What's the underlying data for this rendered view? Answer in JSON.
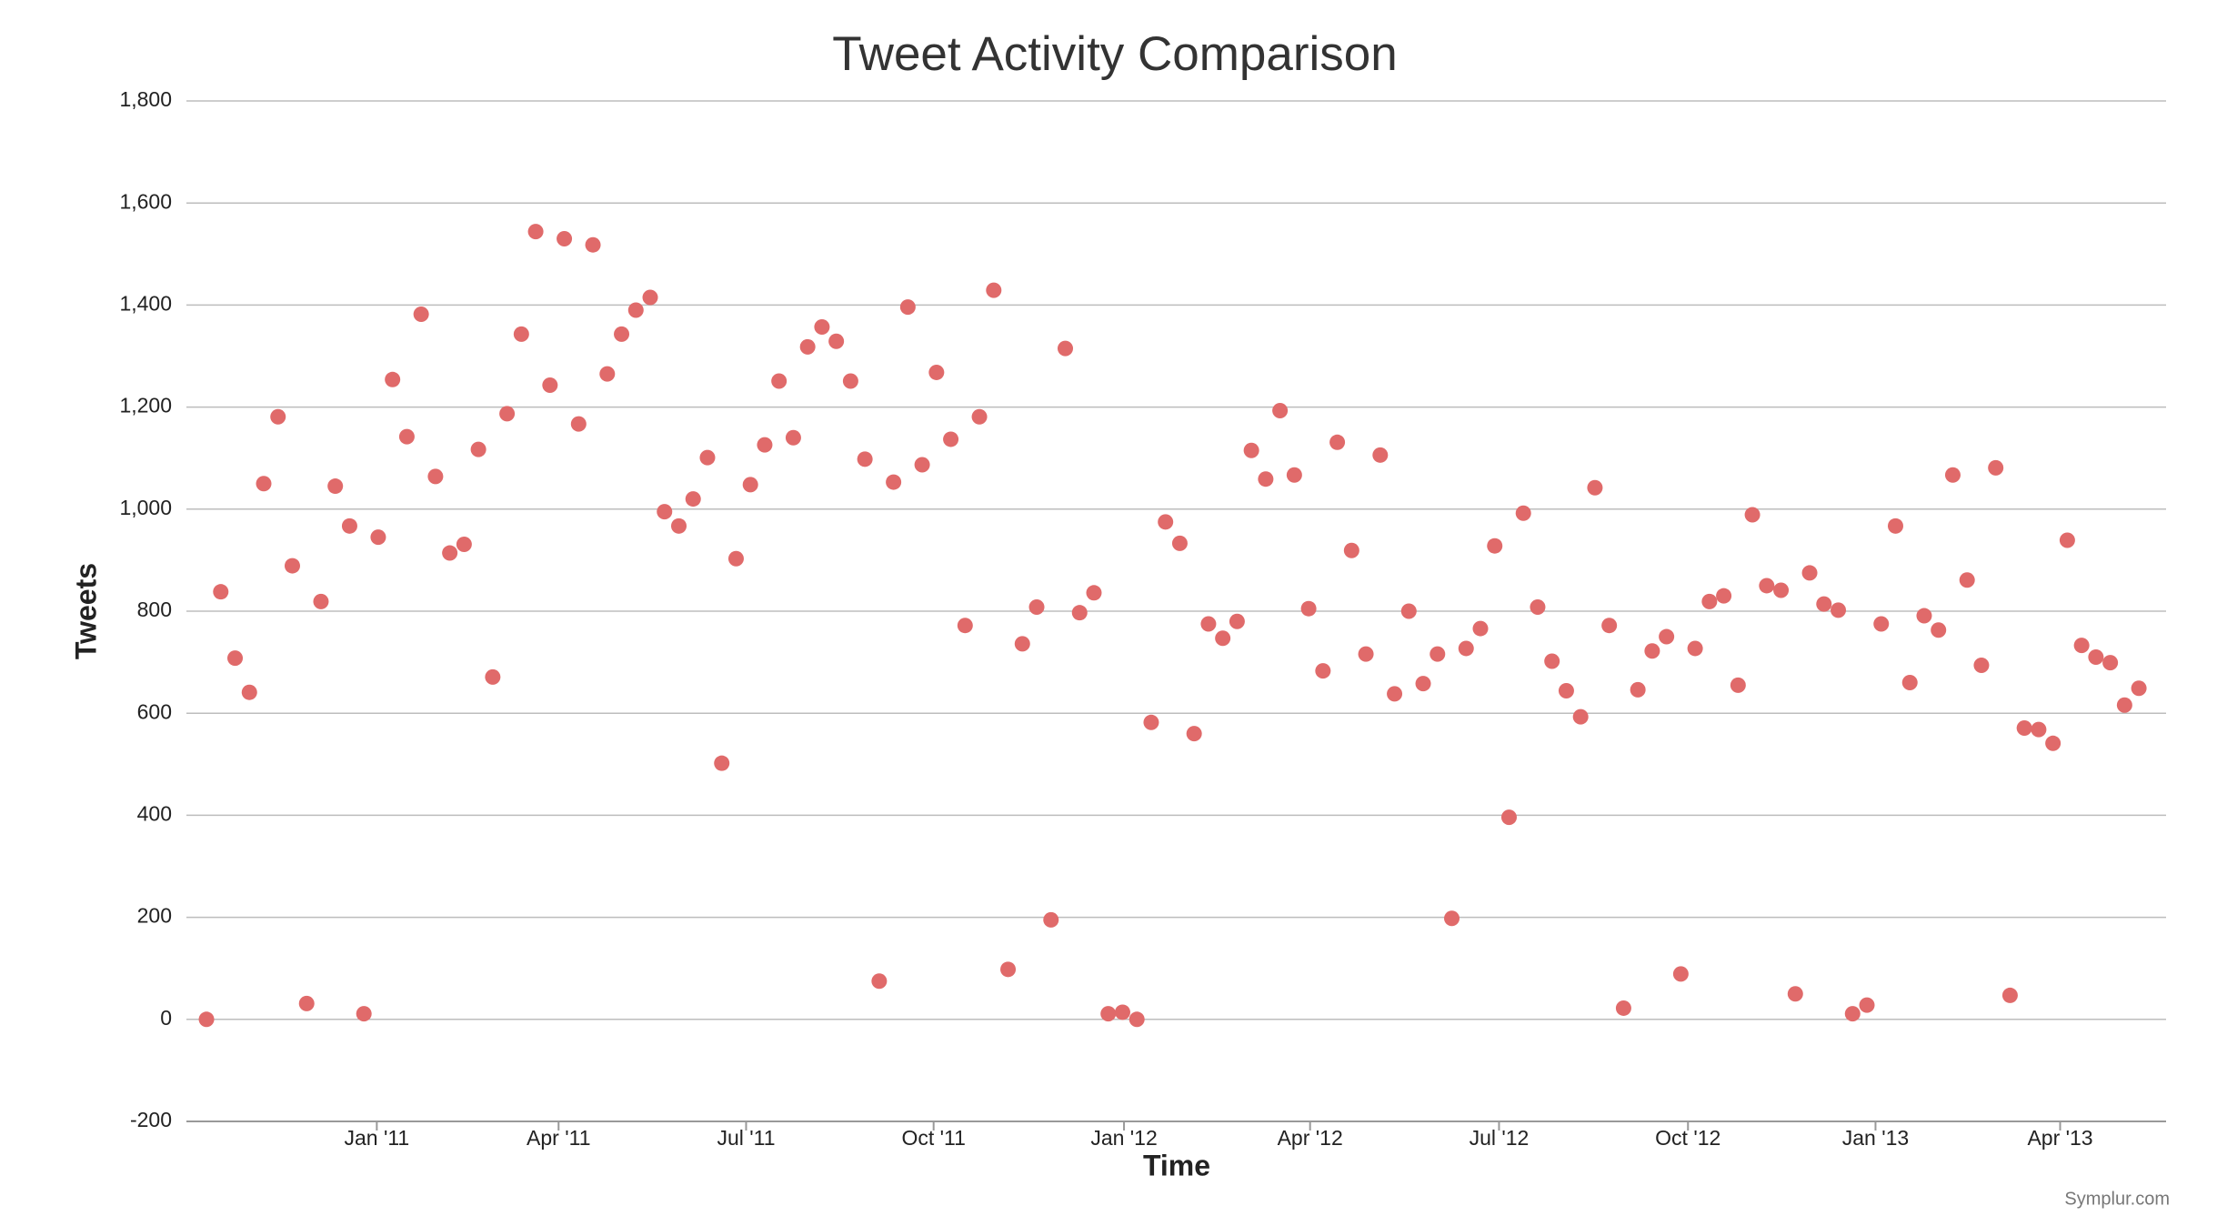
{
  "chart_data": {
    "type": "scatter",
    "title": "Tweet Activity Comparison",
    "xlabel": "Time",
    "ylabel": "Tweets",
    "credit": "Symplur.com",
    "color": "#e06a6a",
    "grid": true,
    "x": [
      0,
      1,
      2,
      3,
      4,
      5,
      6,
      7,
      8,
      9,
      10,
      11,
      12,
      13,
      14,
      15,
      16,
      17,
      18,
      19,
      20,
      21,
      22,
      23,
      24,
      25,
      26,
      27,
      28,
      29,
      30,
      31,
      32,
      33,
      34,
      35,
      36,
      37,
      38,
      39,
      40,
      41,
      42,
      43,
      44,
      45,
      46,
      47,
      48,
      49,
      50,
      51,
      52,
      53,
      54,
      55,
      56,
      57,
      58,
      59,
      60,
      61,
      62,
      63,
      64,
      65,
      66,
      67,
      68,
      69,
      70,
      71,
      72,
      73,
      74,
      75,
      76,
      77,
      78,
      79,
      80,
      81,
      82,
      83,
      84,
      85,
      86,
      87,
      88,
      89,
      90,
      91,
      92,
      93,
      94,
      95,
      96,
      97,
      98,
      99,
      100,
      101,
      102,
      103,
      104,
      105,
      106,
      107,
      108,
      109,
      110,
      111,
      112,
      113,
      114,
      115,
      116,
      117,
      118,
      119,
      120,
      121,
      122,
      123,
      124,
      125,
      126,
      127,
      128,
      129,
      130,
      131,
      132,
      133,
      134,
      135
    ],
    "values": [
      0,
      838,
      708,
      641,
      1050,
      1181,
      889,
      31,
      819,
      1045,
      967,
      11,
      945,
      1254,
      1142,
      1382,
      1064,
      914,
      931,
      1117,
      671,
      1187,
      1343,
      1544,
      1243,
      1530,
      1167,
      1518,
      1265,
      1343,
      1390,
      1415,
      995,
      967,
      1020,
      1101,
      502,
      903,
      1048,
      1126,
      1251,
      1140,
      1318,
      1357,
      1329,
      1251,
      1098,
      75,
      1053,
      1396,
      1087,
      1268,
      1137,
      772,
      1181,
      1429,
      98,
      736,
      808,
      195,
      1315,
      797,
      836,
      11,
      14,
      0,
      582,
      975,
      933,
      560,
      775,
      747,
      780,
      1115,
      1059,
      1193,
      1067,
      805,
      683,
      1131,
      919,
      716,
      1106,
      638,
      800,
      658,
      716,
      198,
      727,
      766,
      928,
      396,
      992,
      808,
      702,
      644,
      593,
      1042,
      772,
      22,
      646,
      722,
      750,
      89,
      727,
      819,
      830,
      655,
      989,
      850,
      841,
      50,
      875,
      814,
      802,
      11,
      28,
      775,
      967,
      660,
      791,
      763,
      1067,
      861,
      694,
      1081,
      47,
      571,
      568,
      541,
      939,
      733,
      710,
      699,
      616,
      649
    ],
    "xlim": [
      -1.4,
      136.9
    ],
    "xticks": [
      {
        "value": 11.9,
        "label": "Jan '11"
      },
      {
        "value": 24.6,
        "label": "Apr '11"
      },
      {
        "value": 37.7,
        "label": "Jul '11"
      },
      {
        "value": 50.8,
        "label": "Oct '11"
      },
      {
        "value": 64.1,
        "label": "Jan '12"
      },
      {
        "value": 77.1,
        "label": "Apr '12"
      },
      {
        "value": 90.3,
        "label": "Jul '12"
      },
      {
        "value": 103.5,
        "label": "Oct '12"
      },
      {
        "value": 116.6,
        "label": "Jan '13"
      },
      {
        "value": 129.5,
        "label": "Apr '13"
      }
    ],
    "ylim": [
      -200,
      1800
    ],
    "yticks": [
      -200,
      0,
      200,
      400,
      600,
      800,
      {
        "value": 1000,
        "label": "1,000"
      },
      {
        "value": 1200,
        "label": "1,200"
      },
      {
        "value": 1400,
        "label": "1,400"
      },
      {
        "value": 1600,
        "label": "1,600"
      },
      {
        "value": 1800,
        "label": "1,800"
      }
    ]
  }
}
